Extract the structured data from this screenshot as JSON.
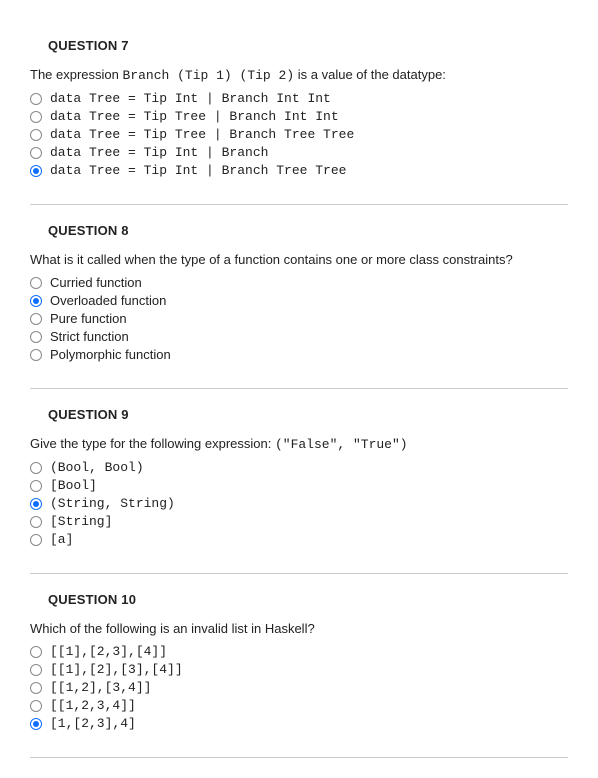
{
  "questions": [
    {
      "title": "QUESTION 7",
      "prompt_pre": "The expression ",
      "prompt_code": "Branch (Tip 1) (Tip 2)",
      "prompt_post": " is a value of the datatype:",
      "prompt_has_code": true,
      "options_mono": true,
      "selected": 4,
      "options": [
        "data Tree = Tip Int | Branch Int Int",
        "data Tree = Tip Tree | Branch Int Int",
        "data Tree = Tip Tree | Branch Tree Tree",
        "data Tree = Tip Int | Branch",
        "data Tree = Tip Int | Branch Tree Tree"
      ]
    },
    {
      "title": "QUESTION 8",
      "prompt_pre": "What is it called when the type of a function contains one or more class constraints?",
      "prompt_code": "",
      "prompt_post": "",
      "prompt_has_code": false,
      "options_mono": false,
      "selected": 1,
      "options": [
        "Curried function",
        "Overloaded function",
        "Pure function",
        "Strict function",
        "Polymorphic function"
      ]
    },
    {
      "title": "QUESTION 9",
      "prompt_pre": "Give the type for the following expression: ",
      "prompt_code": "(\"False\", \"True\")",
      "prompt_post": "",
      "prompt_has_code": true,
      "options_mono": true,
      "selected": 2,
      "options": [
        "(Bool, Bool)",
        "[Bool]",
        "(String, String)",
        "[String]",
        "[a]"
      ]
    },
    {
      "title": "QUESTION 10",
      "prompt_pre": "Which of the following is an invalid list in Haskell?",
      "prompt_code": "",
      "prompt_post": "",
      "prompt_has_code": false,
      "options_mono": true,
      "selected": 4,
      "options": [
        "[[1],[2,3],[4]]",
        "[[1],[2],[3],[4]]",
        "[[1,2],[3,4]]",
        "[[1,2,3,4]]",
        "[1,[2,3],4]"
      ]
    }
  ]
}
